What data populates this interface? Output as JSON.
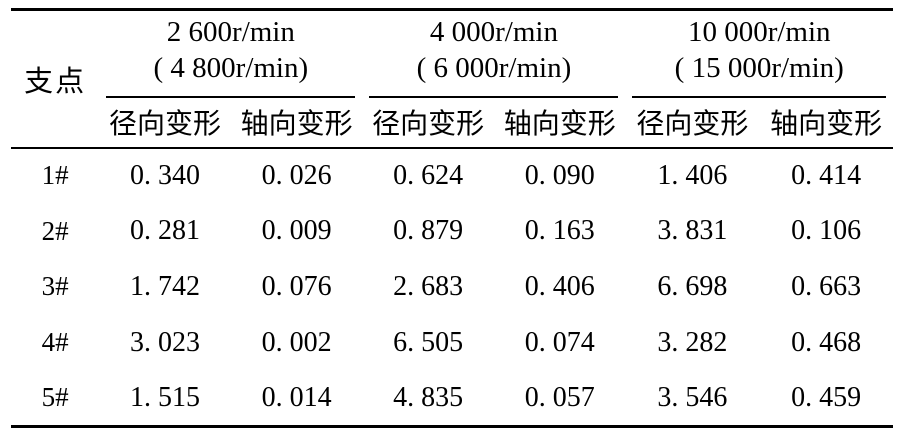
{
  "table": {
    "corner_label": "支点",
    "column_groups": [
      {
        "primary": "2 600r/min",
        "secondary": "( 4 800r/min)"
      },
      {
        "primary": "4 000r/min",
        "secondary": "( 6 000r/min)"
      },
      {
        "primary": "10 000r/min",
        "secondary": "( 15 000r/min)"
      }
    ],
    "sub_headers": {
      "radial": "径向变形",
      "axial": "轴向变形"
    },
    "rows": [
      {
        "label": "1#",
        "values": [
          "0. 340",
          "0. 026",
          "0. 624",
          "0. 090",
          "1. 406",
          "0. 414"
        ]
      },
      {
        "label": "2#",
        "values": [
          "0. 281",
          "0. 009",
          "0. 879",
          "0. 163",
          "3. 831",
          "0. 106"
        ]
      },
      {
        "label": "3#",
        "values": [
          "1. 742",
          "0. 076",
          "2. 683",
          "0. 406",
          "6. 698",
          "0. 663"
        ]
      },
      {
        "label": "4#",
        "values": [
          "3. 023",
          "0. 002",
          "6. 505",
          "0. 074",
          "3. 282",
          "0. 468"
        ]
      },
      {
        "label": "5#",
        "values": [
          "1. 515",
          "0. 014",
          "4. 835",
          "0. 057",
          "3. 546",
          "0. 459"
        ]
      }
    ]
  },
  "colors": {
    "background": "#ffffff",
    "text": "#000000",
    "rule": "#000000"
  },
  "chart_data": {
    "type": "table",
    "row_label_header": "支点",
    "column_groups": [
      "2 600r/min ( 4 800r/min)",
      "4 000r/min ( 6 000r/min)",
      "10 000r/min ( 15 000r/min)"
    ],
    "measures_per_group": [
      "径向变形",
      "轴向变形"
    ],
    "row_labels": [
      "1#",
      "2#",
      "3#",
      "4#",
      "5#"
    ],
    "values": [
      [
        0.34,
        0.026,
        0.624,
        0.09,
        1.406,
        0.414
      ],
      [
        0.281,
        0.009,
        0.879,
        0.163,
        3.831,
        0.106
      ],
      [
        1.742,
        0.076,
        2.683,
        0.406,
        6.698,
        0.663
      ],
      [
        3.023,
        0.002,
        6.505,
        0.074,
        3.282,
        0.468
      ],
      [
        1.515,
        0.014,
        4.835,
        0.057,
        3.546,
        0.459
      ]
    ]
  }
}
